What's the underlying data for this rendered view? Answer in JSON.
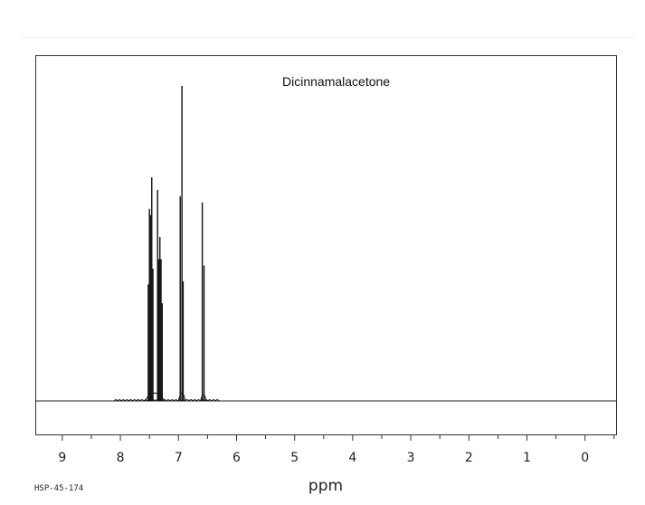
{
  "chart_data": {
    "type": "line",
    "title": "Dicinnamalacetone",
    "xlabel": "ppm",
    "ylabel": "",
    "code": "HSP-45-174",
    "xlim": [
      9.45,
      -0.55
    ],
    "x_reversed": true,
    "x_ticks": [
      "9",
      "8",
      "7",
      "6",
      "5",
      "4",
      "3",
      "2",
      "1",
      "0"
    ],
    "x_tick_values": [
      9,
      8,
      7,
      6,
      5,
      4,
      3,
      2,
      1,
      0
    ],
    "ylim": [
      0,
      1
    ],
    "grid": false,
    "peaks": [
      {
        "x": 7.52,
        "y": 0.37
      },
      {
        "x": 7.5,
        "y": 0.61
      },
      {
        "x": 7.48,
        "y": 0.59
      },
      {
        "x": 7.46,
        "y": 0.71
      },
      {
        "x": 7.44,
        "y": 0.42
      },
      {
        "x": 7.36,
        "y": 0.67
      },
      {
        "x": 7.34,
        "y": 0.45
      },
      {
        "x": 7.32,
        "y": 0.52
      },
      {
        "x": 7.3,
        "y": 0.45
      },
      {
        "x": 7.28,
        "y": 0.31
      },
      {
        "x": 6.97,
        "y": 0.65
      },
      {
        "x": 6.94,
        "y": 1.0
      },
      {
        "x": 6.92,
        "y": 0.38
      },
      {
        "x": 6.59,
        "y": 0.63
      },
      {
        "x": 6.56,
        "y": 0.43
      }
    ],
    "series_color": "#111111"
  }
}
